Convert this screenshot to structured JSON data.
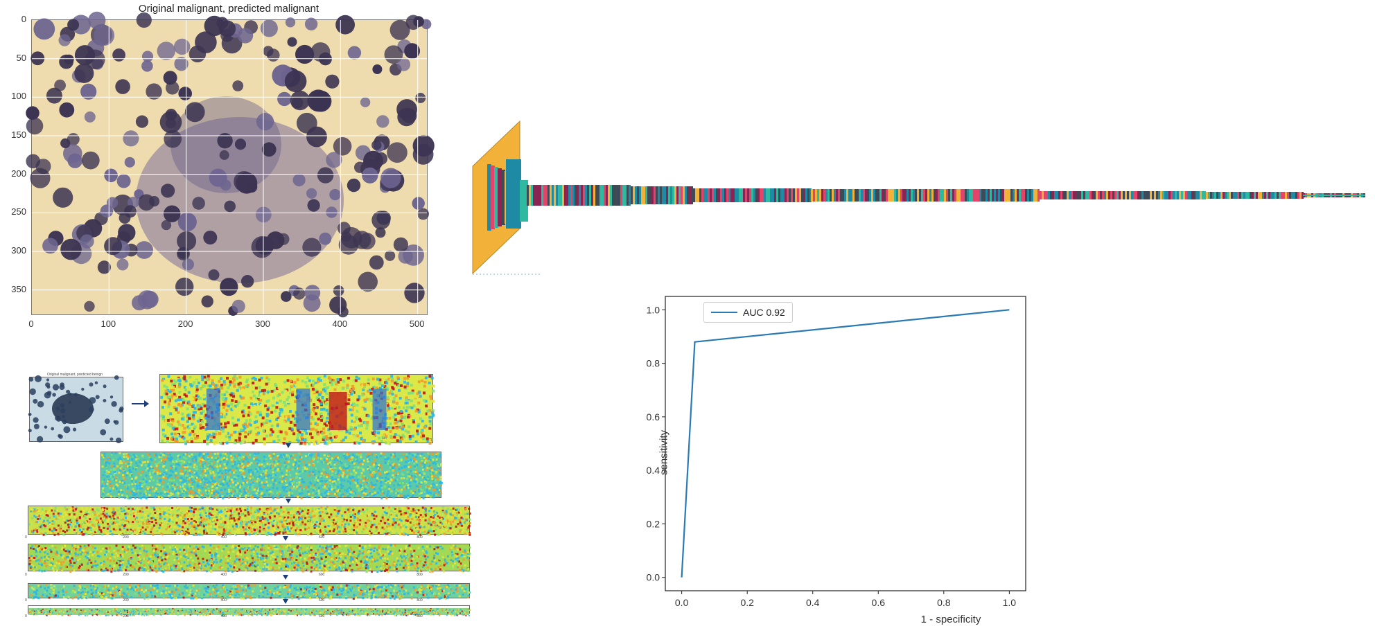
{
  "image_panel": {
    "title": "Original malignant, predicted malignant",
    "x_ticks": [
      "0",
      "100",
      "200",
      "300",
      "400",
      "500"
    ],
    "y_ticks": [
      "0",
      "50",
      "100",
      "150",
      "200",
      "250",
      "300",
      "350"
    ]
  },
  "feature_maps": {
    "input_thumb_title": "Original malignant, predicted benign",
    "strip_tick_labels": [
      "0",
      "200",
      "400",
      "600",
      "800"
    ]
  },
  "network_diagram": {
    "palette": [
      "#f2b23a",
      "#1e8aa3",
      "#e3446a",
      "#2fb9a0",
      "#8a2452",
      "#3f4a57"
    ]
  },
  "chart_data": {
    "type": "line",
    "series": [
      {
        "name": "AUC 0.92",
        "x": [
          0.0,
          0.04,
          1.0
        ],
        "y": [
          0.0,
          0.88,
          1.0
        ],
        "color": "#2a7ab4"
      }
    ],
    "xlabel": "1 - specificity",
    "ylabel": "sensitivity",
    "xlim": [
      -0.05,
      1.05
    ],
    "ylim": [
      -0.05,
      1.05
    ],
    "x_ticks": [
      0.0,
      0.2,
      0.4,
      0.6,
      0.8,
      1.0
    ],
    "y_ticks": [
      0.0,
      0.2,
      0.4,
      0.6,
      0.8,
      1.0
    ],
    "grid": false,
    "legend": "top-left"
  }
}
